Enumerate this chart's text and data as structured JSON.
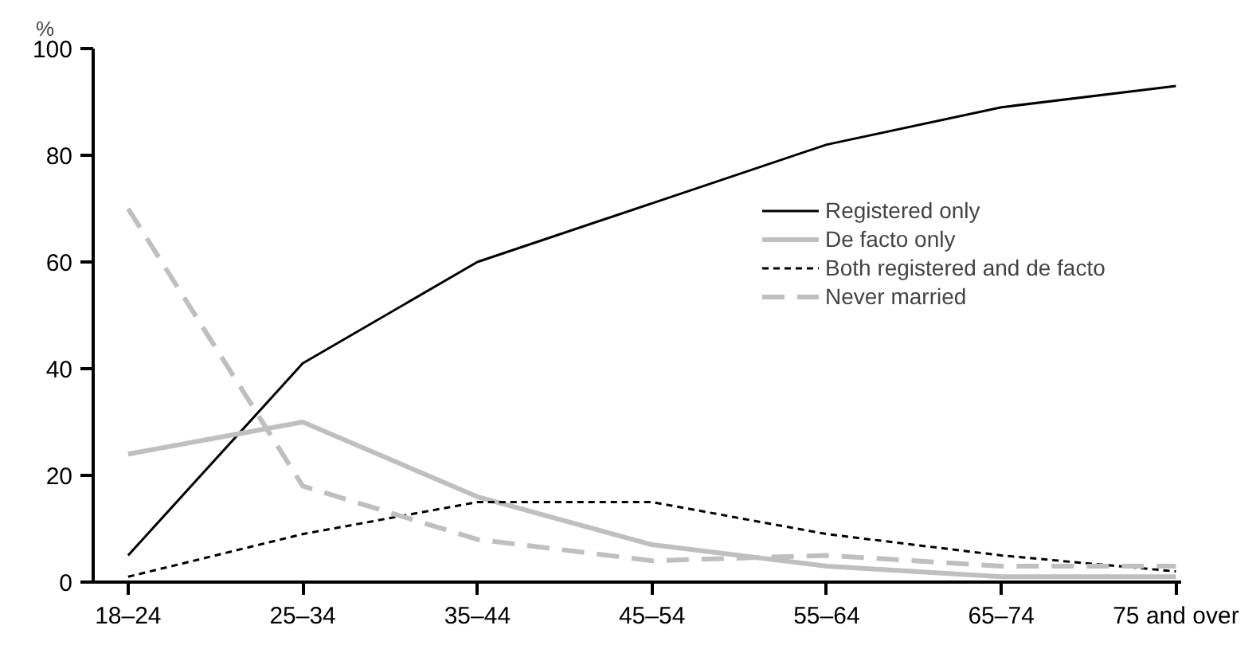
{
  "chart_data": {
    "type": "line",
    "ylabel": "%",
    "categories": [
      "18–24",
      "25–34",
      "35–44",
      "45–54",
      "55–64",
      "65–74",
      "75 and over"
    ],
    "ylim": [
      0,
      100
    ],
    "yticks": [
      0,
      20,
      40,
      60,
      80,
      100
    ],
    "grid": false,
    "legend": "right",
    "series": [
      {
        "name": "Registered only",
        "color": "#000000",
        "line_style": "solid",
        "values": [
          5,
          41,
          60,
          71,
          82,
          89,
          93
        ]
      },
      {
        "name": "De facto only",
        "color": "#bfbfbf",
        "line_style": "solid",
        "values": [
          24,
          30,
          16,
          7,
          3,
          1,
          1
        ]
      },
      {
        "name": "Both registered and de facto",
        "color": "#000000",
        "line_style": "dashed",
        "values": [
          1,
          9,
          15,
          15,
          9,
          5,
          2
        ]
      },
      {
        "name": "Never married",
        "color": "#bfbfbf",
        "line_style": "dashed",
        "values": [
          70,
          18,
          8,
          4,
          5,
          3,
          3
        ]
      }
    ]
  }
}
